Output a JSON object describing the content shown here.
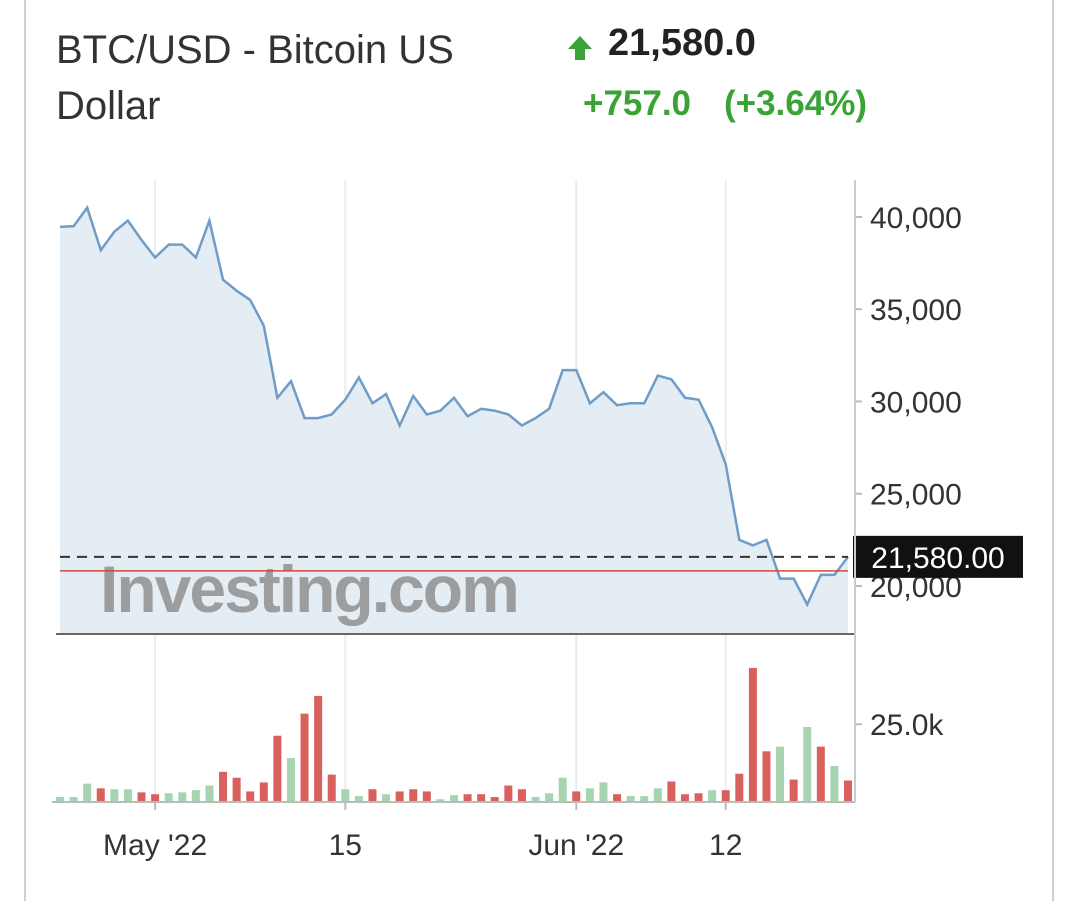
{
  "header": {
    "title": "BTC/USD - Bitcoin US Dollar",
    "price": "21,580.0",
    "change": "+757.0",
    "change_pct": "(+3.64%)"
  },
  "chart_data": [
    {
      "type": "area",
      "categories": [
        null,
        null,
        null,
        null,
        null,
        null,
        null,
        "May '22",
        null,
        null,
        null,
        null,
        null,
        null,
        null,
        null,
        null,
        null,
        null,
        null,
        null,
        "15",
        null,
        null,
        null,
        null,
        null,
        null,
        null,
        null,
        null,
        null,
        null,
        null,
        null,
        null,
        null,
        null,
        "Jun '22",
        null,
        null,
        null,
        null,
        null,
        null,
        null,
        null,
        null,
        null,
        "12",
        null,
        null,
        null,
        null,
        null,
        null,
        null,
        null,
        null
      ],
      "values": [
        39460,
        39500,
        40500,
        38200,
        39200,
        39800,
        38750,
        37800,
        38500,
        38500,
        37800,
        39800,
        36600,
        36000,
        35500,
        34100,
        30200,
        31100,
        29100,
        29100,
        29300,
        30100,
        31300,
        29900,
        30400,
        28700,
        30300,
        29300,
        29500,
        30200,
        29200,
        29600,
        29500,
        29300,
        28700,
        29100,
        29600,
        31700,
        31700,
        29900,
        30500,
        29800,
        29900,
        29900,
        31400,
        31200,
        30200,
        30100,
        28600,
        26600,
        22500,
        22200,
        22500,
        20400,
        20400,
        19000,
        20600,
        20600,
        21580
      ],
      "last_label": "21,580.00",
      "previous_close": 20823,
      "watermark": "Investing.com",
      "color": "#6f9dc8",
      "ylim": [
        17400,
        42000
      ],
      "yticks": [
        {
          "value": 20000,
          "label": "20,000"
        },
        {
          "value": 25000,
          "label": "25,000"
        },
        {
          "value": 30000,
          "label": "30,000"
        },
        {
          "value": 35000,
          "label": "35,000"
        },
        {
          "value": 40000,
          "label": "40,000"
        }
      ]
    },
    {
      "type": "bar",
      "values": [
        1600,
        1600,
        5900,
        4400,
        4100,
        4100,
        3100,
        2500,
        2800,
        3100,
        3800,
        5300,
        9700,
        7800,
        3400,
        6300,
        21300,
        14100,
        28400,
        34100,
        8800,
        4100,
        1900,
        4100,
        2500,
        3400,
        4100,
        3400,
        900,
        2200,
        2500,
        2500,
        1600,
        5300,
        4100,
        1600,
        2800,
        7800,
        3400,
        4400,
        6300,
        2500,
        1900,
        1900,
        4400,
        6600,
        2500,
        2800,
        3800,
        3800,
        9100,
        43100,
        16300,
        17800,
        7200,
        24100,
        17800,
        11600,
        6900
      ],
      "colors": [
        "#a6d4b0",
        "#a6d4b0",
        "#a6d4b0",
        "#d9605c",
        "#a6d4b0",
        "#a6d4b0",
        "#d9605c",
        "#d9605c",
        "#a6d4b0",
        "#a6d4b0",
        "#a6d4b0",
        "#a6d4b0",
        "#d9605c",
        "#d9605c",
        "#d9605c",
        "#d9605c",
        "#d9605c",
        "#a6d4b0",
        "#d9605c",
        "#d9605c",
        "#d9605c",
        "#a6d4b0",
        "#a6d4b0",
        "#d9605c",
        "#a6d4b0",
        "#d9605c",
        "#d9605c",
        "#d9605c",
        "#a6d4b0",
        "#a6d4b0",
        "#d9605c",
        "#d9605c",
        "#d9605c",
        "#d9605c",
        "#d9605c",
        "#a6d4b0",
        "#a6d4b0",
        "#a6d4b0",
        "#d9605c",
        "#a6d4b0",
        "#a6d4b0",
        "#d9605c",
        "#a6d4b0",
        "#a6d4b0",
        "#a6d4b0",
        "#d9605c",
        "#d9605c",
        "#d9605c",
        "#a6d4b0",
        "#d9605c",
        "#d9605c",
        "#d9605c",
        "#d9605c",
        "#a6d4b0",
        "#d9605c",
        "#a6d4b0",
        "#d9605c",
        "#a6d4b0",
        "#d9605c"
      ],
      "ylim": [
        0,
        45000
      ],
      "yticks": [
        {
          "value": 25000,
          "label": "25.0k"
        }
      ]
    }
  ]
}
